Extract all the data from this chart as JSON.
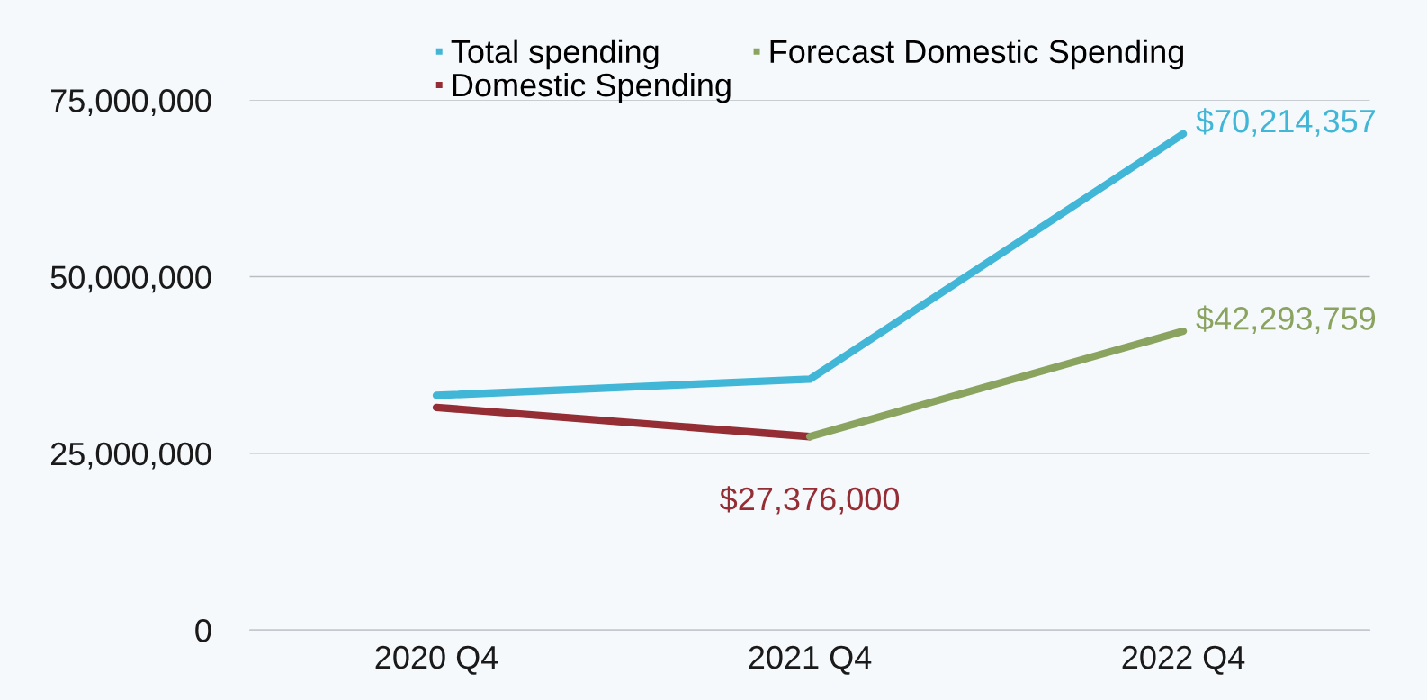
{
  "chart_data": {
    "type": "line",
    "categories": [
      "2020 Q4",
      "2021 Q4",
      "2022 Q4"
    ],
    "series": [
      {
        "name": "Total spending",
        "color": "#41b6d6",
        "values": [
          33200000,
          35500000,
          70214357
        ],
        "value_labels": [
          null,
          null,
          "$70,214,357"
        ]
      },
      {
        "name": "Domestic Spending",
        "color": "#952d35",
        "values": [
          31500000,
          27376000,
          null
        ],
        "value_labels": [
          null,
          "$27,376,000",
          null
        ]
      },
      {
        "name": "Forecast Domestic Spending",
        "color": "#8aa35f",
        "values": [
          null,
          27376000,
          42293759
        ],
        "value_labels": [
          null,
          null,
          "$42,293,759"
        ]
      }
    ],
    "ylim": [
      0,
      75000000
    ],
    "yticks": [
      0,
      {
        "value": 25000000,
        "label": "25,000,000"
      },
      {
        "value": 50000000,
        "label": "50,000,000"
      },
      {
        "value": 75000000,
        "label": "75,000,000"
      }
    ],
    "grid": "y",
    "legend": "top",
    "marker": "none",
    "line_style": "solid"
  }
}
